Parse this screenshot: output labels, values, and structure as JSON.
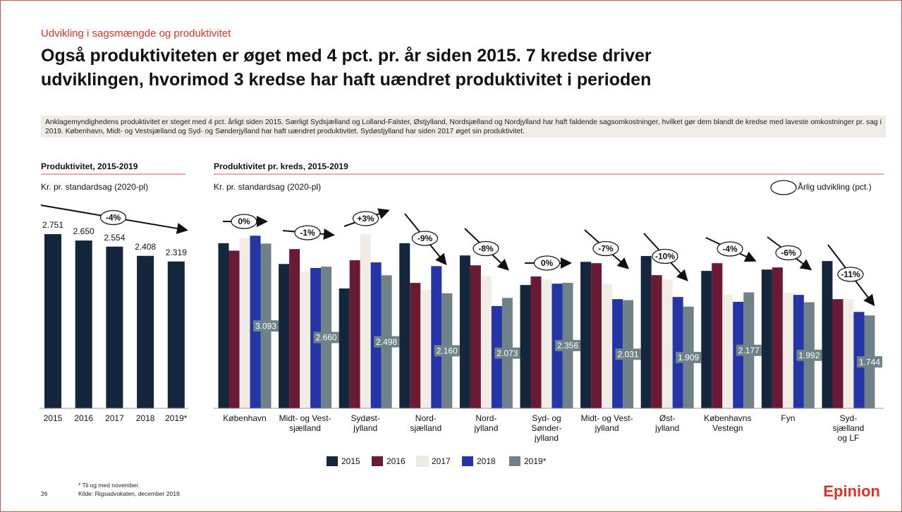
{
  "header": {
    "subtitle": "Udvikling i sagsmængde og produktivitet",
    "title": [
      "Også produktiviteten er øget med 4 pct. pr. år siden 2015. 7 kredse driver",
      "udviklingen, hvorimod 3 kredse har haft uændret produktivitet i perioden"
    ]
  },
  "summary": "Anklagemyndighedens produktivitet er steget med 4 pct. årligt siden 2015. Særligt Sydsjælland og Lolland-Falster, Østjylland, Nordsjælland og Nordjylland har haft faldende sagsomkostninger, hvilket gør dem blandt de kredse med laveste omkostninger pr. sag  i 2019. København, Midt- og Vestsjælland og Syd- og Sønderjylland har haft uændret produktivitet. Sydøstjylland har siden 2017 øget sin produktivitet.",
  "chart_data": [
    {
      "type": "bar",
      "title": "Produktivitet, 2015-2019",
      "unit_label": "Kr. pr. standardsag (2020-pl)",
      "categories": [
        "2015",
        "2016",
        "2017",
        "2018",
        "2019*"
      ],
      "values": [
        2751,
        2650,
        2554,
        2408,
        2319
      ],
      "value_labels": [
        "2.751",
        "2.650",
        "2.554",
        "2.408",
        "2.319"
      ],
      "color": "#13263b",
      "annotation": "-4%"
    },
    {
      "type": "grouped_bar",
      "title": "Produktivitet pr. kreds, 2015-2019",
      "unit_label": "Kr. pr. standardsag (2020-pl)",
      "legend_title": "Årlig udvikling (pct.)",
      "categories": [
        "København",
        "Midt- og Vest-\nsjælland",
        "Sydøst-\njylland",
        "Nord-\nsjælland",
        "Nord-\njylland",
        "Syd- og\nSønder-\njylland",
        "Midt- og Vest-\njylland",
        "Øst-\njylland",
        "Københavns\nVestegn",
        "Fyn",
        "Syd-\nsjælland\nog LF"
      ],
      "changes": [
        "0%",
        "-1%",
        "+3%",
        "-9%",
        "-8%",
        "0%",
        "-7%",
        "-10%",
        "-4%",
        "-6%",
        "-11%"
      ],
      "series": [
        {
          "name": "2015",
          "color": "#13263b",
          "values": [
            3100,
            2710,
            2250,
            3100,
            2870,
            2315,
            2750,
            2860,
            2580,
            2605,
            2765
          ]
        },
        {
          "name": "2016",
          "color": "#6b1a35",
          "values": [
            2960,
            2990,
            2780,
            2355,
            2685,
            2475,
            2725,
            2500,
            2725,
            2645,
            2050
          ]
        },
        {
          "name": "2017",
          "color": "#f1ede6",
          "values": [
            3200,
            2565,
            3270,
            2225,
            2485,
            2420,
            2340,
            2420,
            2130,
            2170,
            2050
          ]
        },
        {
          "name": "2018",
          "color": "#2535a8",
          "values": [
            3240,
            2635,
            2740,
            2670,
            1920,
            2340,
            2050,
            2090,
            2000,
            2130,
            1810
          ]
        },
        {
          "name": "2019*",
          "color": "#6f8288",
          "values": [
            3093,
            2660,
            2498,
            2160,
            2073,
            2356,
            2031,
            1909,
            2177,
            1992,
            1744
          ],
          "value_labels": [
            "3.093",
            "2.660",
            "2.498",
            "2.160",
            "2.073",
            "2.356",
            "2.031",
            "1.909",
            "2.177",
            "1.992",
            "1.744"
          ]
        }
      ]
    }
  ],
  "footnote": "* Til og med november.",
  "source": "Kilde: Rigsadvokaten, december 2019.",
  "page_number": "26",
  "logo": "Epinion"
}
